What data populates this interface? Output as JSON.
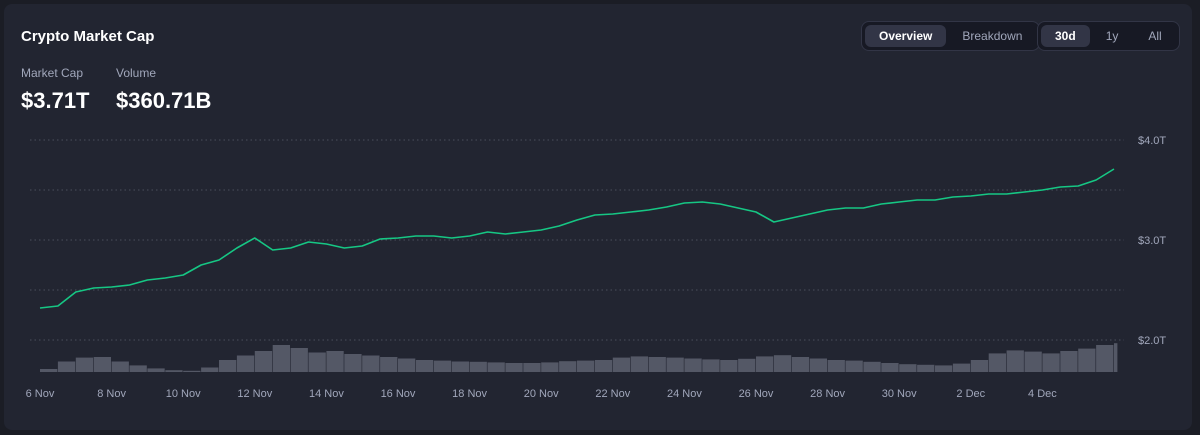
{
  "header": {
    "title": "Crypto Market Cap",
    "view_tabs": [
      {
        "label": "Overview",
        "active": true
      },
      {
        "label": "Breakdown",
        "active": false
      }
    ],
    "range_tabs": [
      {
        "label": "30d",
        "active": true
      },
      {
        "label": "1y",
        "active": false
      },
      {
        "label": "All",
        "active": false
      }
    ]
  },
  "stats": {
    "market_cap_label": "Market Cap",
    "market_cap_value": "$3.71T",
    "volume_label": "Volume",
    "volume_value": "$360.71B"
  },
  "colors": {
    "line": "#16c784",
    "volume": "#5d6170",
    "grid": "#4a4e5c",
    "axis_text": "#a1a7bb"
  },
  "chart_data": {
    "type": "line",
    "ylim": [
      1.7,
      4.0
    ],
    "y_ticks": [
      {
        "value": 4.0,
        "label": "$4.0T"
      },
      {
        "value": 3.0,
        "label": "$3.0T"
      },
      {
        "value": 2.0,
        "label": "$2.0T"
      }
    ],
    "y_grid": [
      4.0,
      3.5,
      3.0,
      2.5,
      2.0
    ],
    "grid": true,
    "x_ticks": [
      "6 Nov",
      "8 Nov",
      "10 Nov",
      "12 Nov",
      "14 Nov",
      "16 Nov",
      "18 Nov",
      "20 Nov",
      "22 Nov",
      "24 Nov",
      "26 Nov",
      "28 Nov",
      "30 Nov",
      "2 Dec",
      "4 Dec"
    ],
    "x_range": [
      "2024-11-06",
      "2024-12-06"
    ],
    "series": [
      {
        "kind": "market_cap",
        "x": [
          "2024-11-06",
          "2024-11-06 12:00",
          "2024-11-07",
          "2024-11-07 12:00",
          "2024-11-08",
          "2024-11-08 12:00",
          "2024-11-09",
          "2024-11-09 12:00",
          "2024-11-10",
          "2024-11-10 12:00",
          "2024-11-11",
          "2024-11-11 12:00",
          "2024-11-12",
          "2024-11-12 12:00",
          "2024-11-13",
          "2024-11-13 12:00",
          "2024-11-14",
          "2024-11-14 12:00",
          "2024-11-15",
          "2024-11-15 12:00",
          "2024-11-16",
          "2024-11-16 12:00",
          "2024-11-17",
          "2024-11-17 12:00",
          "2024-11-18",
          "2024-11-18 12:00",
          "2024-11-19",
          "2024-11-19 12:00",
          "2024-11-20",
          "2024-11-20 12:00",
          "2024-11-21",
          "2024-11-21 12:00",
          "2024-11-22",
          "2024-11-22 12:00",
          "2024-11-23",
          "2024-11-23 12:00",
          "2024-11-24",
          "2024-11-24 12:00",
          "2024-11-25",
          "2024-11-25 12:00",
          "2024-11-26",
          "2024-11-26 12:00",
          "2024-11-27",
          "2024-11-27 12:00",
          "2024-11-28",
          "2024-11-28 12:00",
          "2024-11-29",
          "2024-11-29 12:00",
          "2024-11-30",
          "2024-11-30 12:00",
          "2024-12-01",
          "2024-12-01 12:00",
          "2024-12-02",
          "2024-12-02 12:00",
          "2024-12-03",
          "2024-12-03 12:00",
          "2024-12-04",
          "2024-12-04 12:00",
          "2024-12-05",
          "2024-12-05 12:00",
          "2024-12-06"
        ],
        "values": [
          2.32,
          2.34,
          2.48,
          2.52,
          2.53,
          2.55,
          2.6,
          2.62,
          2.65,
          2.75,
          2.8,
          2.92,
          3.02,
          2.9,
          2.92,
          2.98,
          2.96,
          2.92,
          2.94,
          3.01,
          3.02,
          3.04,
          3.04,
          3.02,
          3.04,
          3.08,
          3.06,
          3.08,
          3.1,
          3.14,
          3.2,
          3.25,
          3.26,
          3.28,
          3.3,
          3.33,
          3.37,
          3.38,
          3.36,
          3.32,
          3.28,
          3.18,
          3.22,
          3.26,
          3.3,
          3.32,
          3.32,
          3.36,
          3.38,
          3.4,
          3.4,
          3.43,
          3.44,
          3.46,
          3.46,
          3.48,
          3.5,
          3.53,
          3.54,
          3.6,
          3.71
        ]
      },
      {
        "kind": "volume",
        "x": [
          "2024-11-06",
          "2024-11-06 12:00",
          "2024-11-07",
          "2024-11-07 12:00",
          "2024-11-08",
          "2024-11-08 12:00",
          "2024-11-09",
          "2024-11-09 12:00",
          "2024-11-10",
          "2024-11-10 12:00",
          "2024-11-11",
          "2024-11-11 12:00",
          "2024-11-12",
          "2024-11-12 12:00",
          "2024-11-13",
          "2024-11-13 12:00",
          "2024-11-14",
          "2024-11-14 12:00",
          "2024-11-15",
          "2024-11-15 12:00",
          "2024-11-16",
          "2024-11-16 12:00",
          "2024-11-17",
          "2024-11-17 12:00",
          "2024-11-18",
          "2024-11-18 12:00",
          "2024-11-19",
          "2024-11-19 12:00",
          "2024-11-20",
          "2024-11-20 12:00",
          "2024-11-21",
          "2024-11-21 12:00",
          "2024-11-22",
          "2024-11-22 12:00",
          "2024-11-23",
          "2024-11-23 12:00",
          "2024-11-24",
          "2024-11-24 12:00",
          "2024-11-25",
          "2024-11-25 12:00",
          "2024-11-26",
          "2024-11-26 12:00",
          "2024-11-27",
          "2024-11-27 12:00",
          "2024-11-28",
          "2024-11-28 12:00",
          "2024-11-29",
          "2024-11-29 12:00",
          "2024-11-30",
          "2024-11-30 12:00",
          "2024-12-01",
          "2024-12-01 12:00",
          "2024-12-02",
          "2024-12-02 12:00",
          "2024-12-03",
          "2024-12-03 12:00",
          "2024-12-04",
          "2024-12-04 12:00",
          "2024-12-05",
          "2024-12-05 12:00",
          "2024-12-06"
        ],
        "values": [
          0.1,
          0.35,
          0.48,
          0.5,
          0.35,
          0.22,
          0.12,
          0.06,
          0.04,
          0.15,
          0.4,
          0.55,
          0.7,
          0.9,
          0.8,
          0.65,
          0.7,
          0.6,
          0.55,
          0.5,
          0.45,
          0.4,
          0.38,
          0.35,
          0.34,
          0.32,
          0.3,
          0.3,
          0.32,
          0.36,
          0.38,
          0.4,
          0.48,
          0.52,
          0.5,
          0.48,
          0.45,
          0.42,
          0.4,
          0.44,
          0.52,
          0.56,
          0.5,
          0.45,
          0.4,
          0.38,
          0.34,
          0.3,
          0.26,
          0.24,
          0.22,
          0.28,
          0.4,
          0.62,
          0.72,
          0.68,
          0.62,
          0.7,
          0.78,
          0.9,
          0.96
        ]
      }
    ]
  }
}
